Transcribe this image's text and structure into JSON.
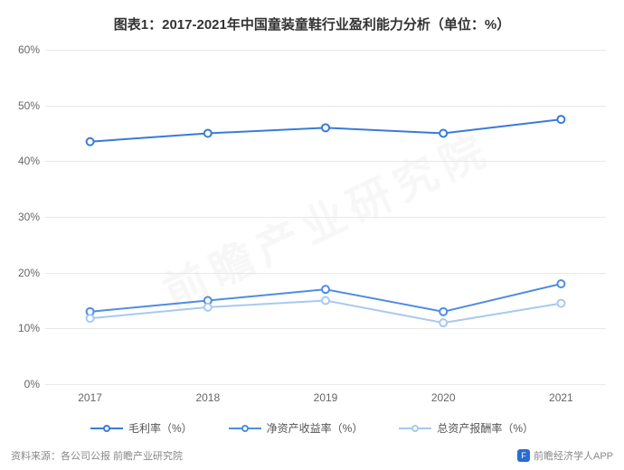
{
  "title": "图表1：2017-2021年中国童装童鞋行业盈利能力分析（单位：%）",
  "chart": {
    "type": "line",
    "categories": [
      "2017",
      "2018",
      "2019",
      "2020",
      "2021"
    ],
    "series": [
      {
        "name": "毛利率（%）",
        "color": "#3a7bd5",
        "values": [
          43.5,
          45.0,
          46.0,
          45.0,
          47.5
        ]
      },
      {
        "name": "净资产收益率（%）",
        "color": "#4f8de0",
        "values": [
          13.0,
          15.0,
          17.0,
          13.0,
          18.0
        ]
      },
      {
        "name": "总资产报酬率（%）",
        "color": "#a8c9ef",
        "values": [
          11.8,
          13.8,
          15.0,
          11.0,
          14.5
        ]
      }
    ],
    "ylim": [
      0,
      60
    ],
    "ytick_step": 10,
    "yticks": [
      "0%",
      "10%",
      "20%",
      "30%",
      "40%",
      "50%",
      "60%"
    ],
    "background_color": "#ffffff",
    "grid_color": "#e8e8e8",
    "axis_font_size": 12,
    "title_font_size": 15,
    "marker_radius": 4,
    "line_width": 2,
    "x_padding_pct": 8
  },
  "watermark": "前瞻产业研究院",
  "footer": {
    "left": "资料来源：各公司公报 前瞻产业研究院",
    "right": "前瞻经济学人APP",
    "icon_glyph": "F",
    "icon_bg": "#2a6cd6"
  }
}
